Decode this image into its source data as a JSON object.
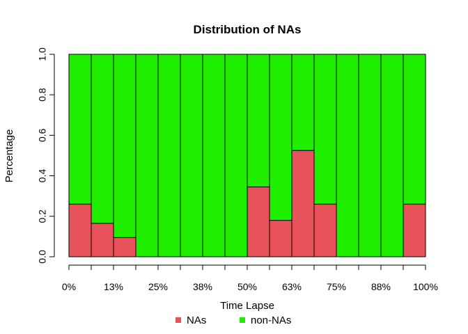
{
  "chart_data": {
    "type": "bar",
    "stacked": true,
    "title": "Distribution of NAs",
    "xlabel": "Time Lapse",
    "ylabel": "Percentage",
    "ylim": [
      0,
      1
    ],
    "y_ticks": [
      "0.0",
      "0.2",
      "0.4",
      "0.6",
      "0.8",
      "1.0"
    ],
    "x_ticks": [
      "0%",
      "13%",
      "25%",
      "38%",
      "50%",
      "63%",
      "75%",
      "88%",
      "100%"
    ],
    "bar_count": 16,
    "series": [
      {
        "name": "NAs",
        "color": "#E8525A",
        "values": [
          0.26,
          0.165,
          0.095,
          0,
          0,
          0,
          0,
          0,
          0.345,
          0.18,
          0.525,
          0.26,
          0,
          0,
          0,
          0.26
        ]
      },
      {
        "name": "non-NAs",
        "color": "#1EF000",
        "values": [
          0.74,
          0.835,
          0.905,
          1,
          1,
          1,
          1,
          1,
          0.655,
          0.82,
          0.475,
          0.74,
          1,
          1,
          1,
          0.74
        ]
      }
    ],
    "legend_position": "bottom",
    "grid": false
  }
}
